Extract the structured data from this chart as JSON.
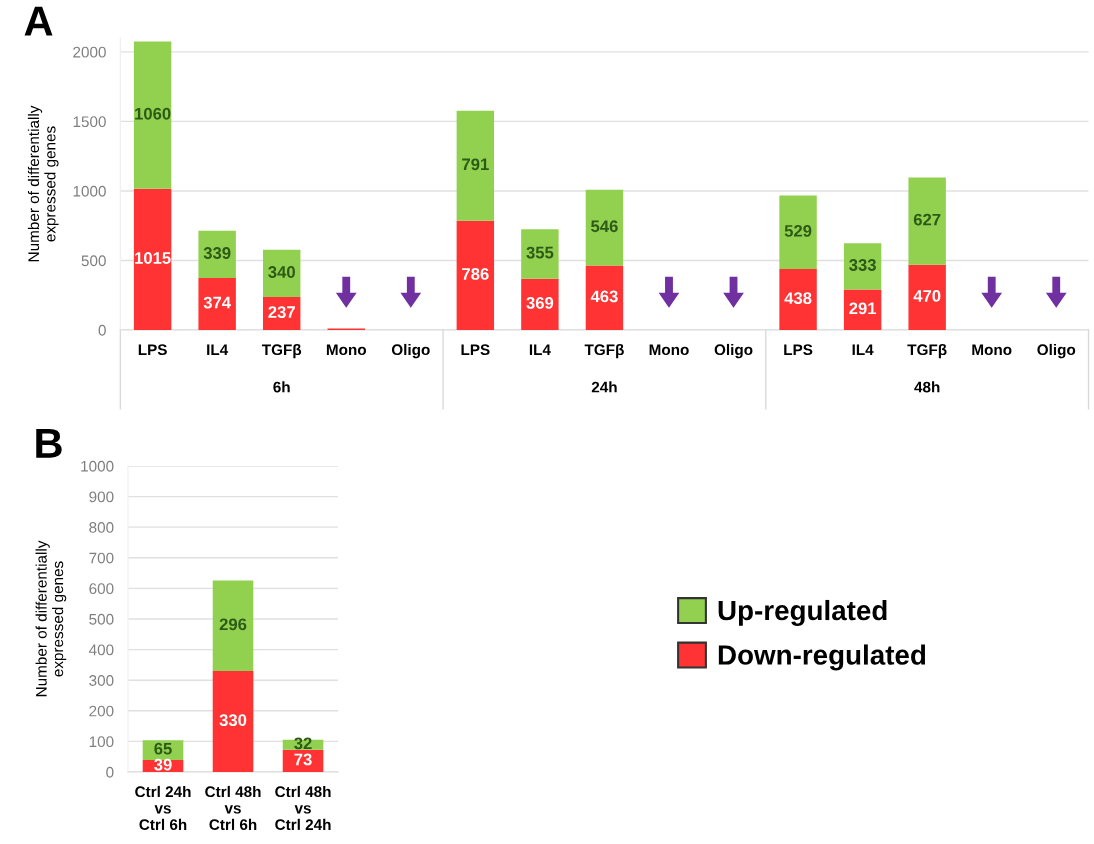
{
  "chart_data": [
    {
      "type": "bar",
      "title": "A",
      "stacked": true,
      "ylabel": "Number of differentially\nexpressed genes",
      "categories": [
        "LPS",
        "IL4",
        "TGFβ",
        "Mono",
        "Oligo",
        "LPS",
        "IL4",
        "TGFβ",
        "Mono",
        "Oligo",
        "LPS",
        "IL4",
        "TGFβ",
        "Mono",
        "Oligo"
      ],
      "series": [
        {
          "color": "#ff3333",
          "values": [
            1015,
            374,
            237,
            10,
            0,
            786,
            369,
            463,
            0,
            0,
            438,
            291,
            470,
            0,
            0
          ],
          "value_labels": [
            "1015",
            "374",
            "237",
            null,
            null,
            "786",
            "369",
            "463",
            null,
            null,
            "438",
            "291",
            "470",
            null,
            null
          ]
        },
        {
          "color": "#92d050",
          "values": [
            1060,
            339,
            340,
            0,
            0,
            791,
            355,
            546,
            0,
            0,
            529,
            333,
            627,
            0,
            0
          ],
          "value_labels": [
            "1060",
            "339",
            "340",
            null,
            null,
            "791",
            "355",
            "546",
            null,
            null,
            "529",
            "333",
            "627",
            null,
            null
          ]
        }
      ],
      "annotations": [
        "6h",
        "24h",
        "48h"
      ],
      "ylim": [
        0,
        2100
      ],
      "yticks": [
        0,
        500,
        1000,
        1500,
        2000
      ],
      "grid": "y",
      "legend": false
    },
    {
      "type": "bar",
      "title": "B",
      "stacked": true,
      "ylabel": "Number of differentially\nexpressed genes",
      "categories": [
        "Ctrl 24h\nvs\nCtrl 6h",
        "Ctrl 48h\nvs\nCtrl 6h",
        "Ctrl 48h\nvs\nCtrl 24h"
      ],
      "series": [
        {
          "name": "Down-regulated",
          "color": "#ff3333",
          "values": [
            39,
            330,
            73
          ],
          "value_labels": [
            "39",
            "330",
            "73"
          ]
        },
        {
          "name": "Up-regulated",
          "color": "#92d050",
          "values": [
            65,
            296,
            32
          ],
          "value_labels": [
            "65",
            "296",
            "32"
          ]
        }
      ],
      "ylim": [
        0,
        1000
      ],
      "yticks": [
        0,
        100,
        200,
        300,
        400,
        500,
        600,
        700,
        800,
        900,
        1000
      ],
      "grid": "y",
      "legend": "right"
    }
  ]
}
